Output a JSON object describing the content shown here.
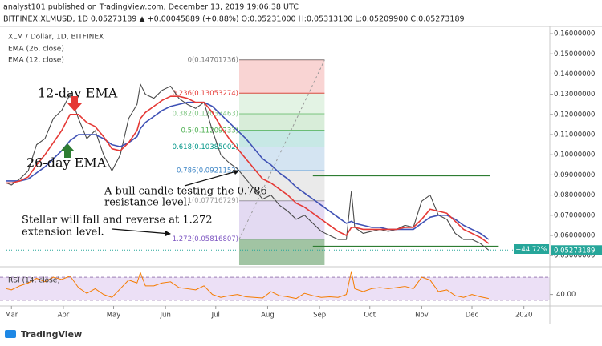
{
  "header": {
    "published": "analyst101 published on TradingView.com, December 13, 2019 19:06:38 UTC",
    "ohlc": "BITFINEX:XLMUSD, 1D  0.05273189  ▲ +0.00045889 (+0.88%)  O:0.05231000  H:0.05313100  L:0.05209900  C:0.05273189"
  },
  "footer": {
    "brand": "TradingView"
  },
  "chart_data": {
    "type": "line",
    "x": [
      -3,
      0,
      5,
      10,
      15,
      20,
      25,
      30,
      35,
      40,
      45,
      50,
      55,
      60,
      65,
      70,
      75,
      77,
      80,
      85,
      90,
      95,
      100,
      105,
      110,
      115,
      120,
      125,
      130,
      135,
      140,
      145,
      150,
      155,
      160,
      165,
      170,
      175,
      180,
      185,
      190,
      195,
      200,
      203,
      205,
      210,
      215,
      220,
      225,
      230,
      235,
      240,
      245,
      250,
      255,
      260,
      265,
      270,
      275,
      280,
      285
    ],
    "xlim": [
      -3,
      321.5
    ],
    "xticks": [
      {
        "value": 0,
        "label": "Mar"
      },
      {
        "value": 31,
        "label": "Apr"
      },
      {
        "value": 61,
        "label": "May"
      },
      {
        "value": 92,
        "label": "Jun"
      },
      {
        "value": 122,
        "label": "Jul"
      },
      {
        "value": 153,
        "label": "Aug"
      },
      {
        "value": 184,
        "label": "Sep"
      },
      {
        "value": 214,
        "label": "Oct"
      },
      {
        "value": 245,
        "label": "Nov"
      },
      {
        "value": 275,
        "label": "Dec"
      },
      {
        "value": 306,
        "label": "2020"
      }
    ],
    "ylim": [
      0.0457,
      0.1636
    ],
    "yticks": [
      {
        "value": 0.16,
        "label": "0.16000000"
      },
      {
        "value": 0.15,
        "label": "0.15000000"
      },
      {
        "value": 0.14,
        "label": "0.14000000"
      },
      {
        "value": 0.13,
        "label": "0.13000000"
      },
      {
        "value": 0.12,
        "label": "0.12000000"
      },
      {
        "value": 0.11,
        "label": "0.11000000"
      },
      {
        "value": 0.1,
        "label": "0.10000000"
      },
      {
        "value": 0.09,
        "label": "0.09000000"
      },
      {
        "value": 0.08,
        "label": "0.08000000"
      },
      {
        "value": 0.07,
        "label": "0.07000000"
      },
      {
        "value": 0.06,
        "label": "0.06000000"
      },
      {
        "value": 0.05,
        "label": "0.05000000"
      }
    ],
    "series": [
      {
        "name": "XLM / Dollar, 1D, BITFINEX",
        "color": "#4a4a4a",
        "values": [
          0.086,
          0.085,
          0.088,
          0.092,
          0.105,
          0.108,
          0.118,
          0.122,
          0.13,
          0.118,
          0.108,
          0.112,
          0.1,
          0.092,
          0.1,
          0.118,
          0.125,
          0.135,
          0.13,
          0.128,
          0.132,
          0.134,
          0.128,
          0.125,
          0.123,
          0.126,
          0.112,
          0.1,
          0.096,
          0.093,
          0.088,
          0.083,
          0.078,
          0.08,
          0.075,
          0.072,
          0.068,
          0.07,
          0.066,
          0.062,
          0.06,
          0.058,
          0.058,
          0.082,
          0.064,
          0.061,
          0.062,
          0.063,
          0.062,
          0.063,
          0.065,
          0.064,
          0.077,
          0.08,
          0.07,
          0.068,
          0.061,
          0.058,
          0.058,
          0.056,
          0.05273189
        ]
      },
      {
        "name": "EMA (26, close)",
        "color": "#3f51b5",
        "values": [
          0.087,
          0.087,
          0.087,
          0.088,
          0.091,
          0.094,
          0.098,
          0.102,
          0.107,
          0.11,
          0.11,
          0.11,
          0.108,
          0.105,
          0.104,
          0.106,
          0.109,
          0.113,
          0.116,
          0.119,
          0.122,
          0.124,
          0.125,
          0.126,
          0.126,
          0.126,
          0.124,
          0.12,
          0.116,
          0.112,
          0.108,
          0.103,
          0.098,
          0.095,
          0.091,
          0.088,
          0.084,
          0.081,
          0.078,
          0.075,
          0.072,
          0.069,
          0.066,
          0.067,
          0.066,
          0.065,
          0.064,
          0.064,
          0.063,
          0.063,
          0.063,
          0.063,
          0.066,
          0.069,
          0.07,
          0.07,
          0.068,
          0.065,
          0.063,
          0.061,
          0.058
        ]
      },
      {
        "name": "EMA (12, close)",
        "color": "#e53935",
        "values": [
          0.086,
          0.086,
          0.087,
          0.089,
          0.095,
          0.1,
          0.106,
          0.112,
          0.12,
          0.12,
          0.116,
          0.114,
          0.109,
          0.103,
          0.102,
          0.106,
          0.112,
          0.118,
          0.121,
          0.124,
          0.127,
          0.129,
          0.129,
          0.128,
          0.126,
          0.126,
          0.121,
          0.114,
          0.108,
          0.103,
          0.098,
          0.093,
          0.088,
          0.086,
          0.083,
          0.08,
          0.076,
          0.074,
          0.071,
          0.068,
          0.065,
          0.062,
          0.06,
          0.064,
          0.064,
          0.063,
          0.063,
          0.063,
          0.063,
          0.063,
          0.064,
          0.064,
          0.068,
          0.073,
          0.072,
          0.071,
          0.067,
          0.063,
          0.061,
          0.059,
          0.056
        ]
      }
    ],
    "last_price": 0.05273189,
    "last_price_color": "#26a69a",
    "change_label": "−44.72%",
    "fib_x": [
      136,
      187
    ],
    "fib": [
      {
        "value": 0.14701736,
        "label": "0(0.14701736)",
        "color": "#787878"
      },
      {
        "value": 0.13053274,
        "label": "0.236(0.13053274)",
        "color": "#e53935"
      },
      {
        "value": 0.12033463,
        "label": "0.382(0.12033463)",
        "color": "#81c784"
      },
      {
        "value": 0.11209233,
        "label": "0.5(0.11209233)",
        "color": "#4caf50"
      },
      {
        "value": 0.10385002,
        "label": "0.618(0.10385002)",
        "color": "#009688"
      },
      {
        "value": 0.0921152,
        "label": "0.786(0.0921152)",
        "color": "#3d85c6"
      },
      {
        "value": 0.07716729,
        "label": "1(0.07716729)",
        "color": "#9e9e9e"
      },
      {
        "value": 0.05816807,
        "label": "1.272(0.05816807)",
        "color": "#7e57c2"
      }
    ],
    "fib_base_color": "#2e7d32",
    "levels": [
      {
        "value": 0.0897,
        "x": [
          180,
          286
        ],
        "color": "#2e7d32"
      },
      {
        "value": 0.0545,
        "x": [
          180,
          291
        ],
        "color": "#2e7d32"
      }
    ],
    "annotations": [
      "12-day EMA",
      "26-day EMA",
      "A bull candle testing the 0.786",
      "resistance level.",
      "Stellar will fall and reverse at 1.272",
      "extension level."
    ],
    "rsi": {
      "name": "RSI (14, close)",
      "color": "#f57c00",
      "ylim": [
        20,
        84
      ],
      "bands": [
        70,
        30
      ],
      "yticks": [
        {
          "value": 40,
          "label": "40.00"
        }
      ],
      "values": [
        50,
        48,
        55,
        60,
        68,
        62,
        70,
        66,
        72,
        52,
        42,
        50,
        40,
        35,
        50,
        65,
        60,
        78,
        55,
        55,
        60,
        62,
        52,
        50,
        48,
        55,
        40,
        35,
        38,
        40,
        36,
        35,
        34,
        45,
        38,
        36,
        33,
        42,
        38,
        35,
        36,
        35,
        40,
        80,
        50,
        45,
        50,
        52,
        50,
        52,
        54,
        50,
        70,
        65,
        45,
        48,
        38,
        35,
        40,
        36,
        33
      ]
    }
  }
}
